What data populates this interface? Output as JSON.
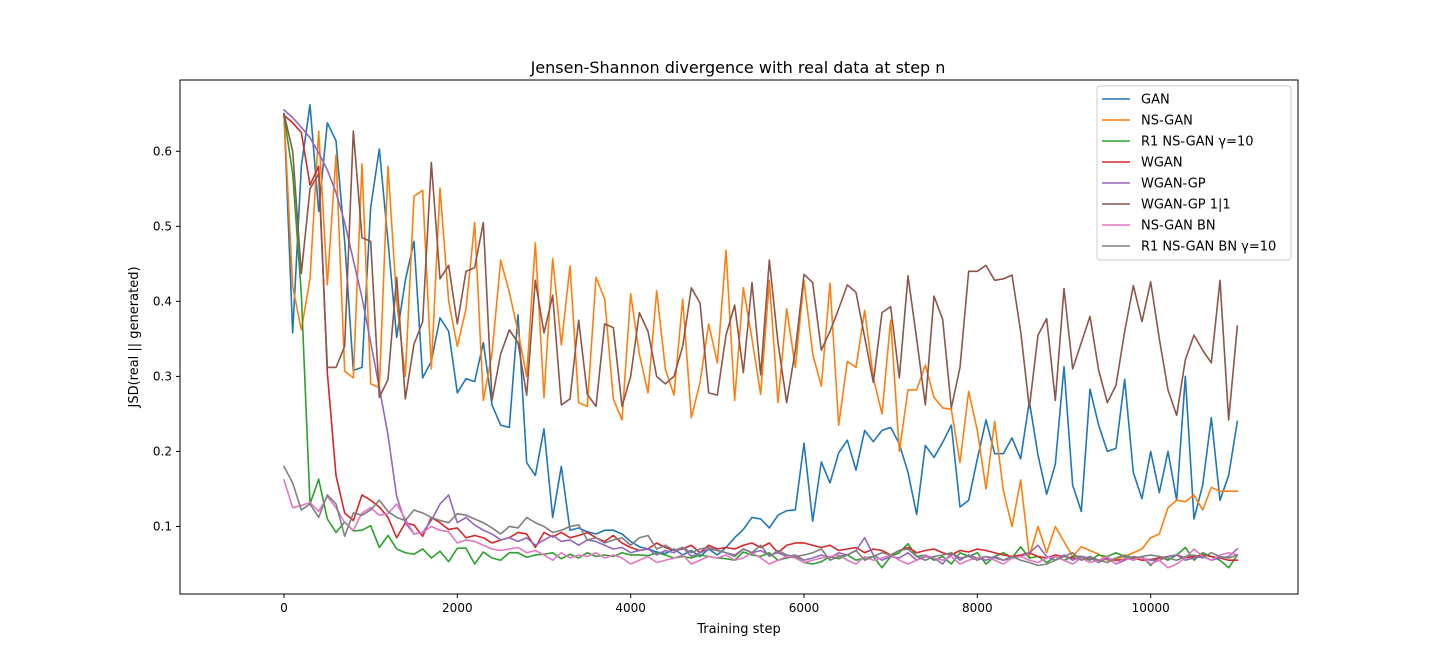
{
  "chart_data": {
    "type": "line",
    "title": "Jensen-Shannon divergence with real data at step n",
    "xlabel": "Training step",
    "ylabel": "JSD(real || generated)",
    "xlim": [
      -1200,
      11700
    ],
    "ylim": [
      0.01,
      0.695
    ],
    "xticks": [
      0,
      2000,
      4000,
      6000,
      8000,
      10000
    ],
    "xtick_labels": [
      "0",
      "2000",
      "4000",
      "6000",
      "8000",
      "10000"
    ],
    "yticks": [
      0.1,
      0.2,
      0.3,
      0.4,
      0.5,
      0.6
    ],
    "ytick_labels": [
      "0.1",
      "0.2",
      "0.3",
      "0.4",
      "0.5",
      "0.6"
    ],
    "grid": false,
    "legend_position": "upper right",
    "x_start": 0,
    "x_step": 100,
    "series": [
      {
        "name": "GAN",
        "color": "#1f77b4",
        "values": [
          0.65,
          0.358,
          0.58,
          0.662,
          0.52,
          0.638,
          0.614,
          0.48,
          0.308,
          0.312,
          0.525,
          0.603,
          0.48,
          0.352,
          0.428,
          0.48,
          0.298,
          0.32,
          0.378,
          0.36,
          0.278,
          0.297,
          0.293,
          0.345,
          0.262,
          0.235,
          0.232,
          0.382,
          0.185,
          0.168,
          0.23,
          0.112,
          0.18,
          0.095,
          0.098,
          0.093,
          0.09,
          0.095,
          0.095,
          0.09,
          0.08,
          0.073,
          0.07,
          0.066,
          0.064,
          0.07,
          0.062,
          0.068,
          0.06,
          0.07,
          0.062,
          0.072,
          0.085,
          0.096,
          0.112,
          0.11,
          0.098,
          0.115,
          0.121,
          0.122,
          0.211,
          0.107,
          0.186,
          0.158,
          0.198,
          0.215,
          0.175,
          0.228,
          0.213,
          0.228,
          0.232,
          0.21,
          0.172,
          0.116,
          0.208,
          0.192,
          0.212,
          0.235,
          0.126,
          0.135,
          0.19,
          0.242,
          0.197,
          0.197,
          0.218,
          0.19,
          0.267,
          0.195,
          0.143,
          0.183,
          0.313,
          0.155,
          0.12,
          0.283,
          0.235,
          0.2,
          0.204,
          0.296,
          0.172,
          0.137,
          0.2,
          0.145,
          0.2,
          0.135,
          0.3,
          0.11,
          0.155,
          0.245,
          0.135,
          0.168,
          0.24
        ]
      },
      {
        "name": "NS-GAN",
        "color": "#ff7f0e",
        "values": [
          0.65,
          0.42,
          0.362,
          0.43,
          0.627,
          0.422,
          0.595,
          0.307,
          0.298,
          0.583,
          0.29,
          0.285,
          0.58,
          0.4,
          0.3,
          0.54,
          0.548,
          0.31,
          0.551,
          0.4,
          0.34,
          0.39,
          0.505,
          0.268,
          0.33,
          0.455,
          0.412,
          0.36,
          0.3,
          0.478,
          0.272,
          0.457,
          0.342,
          0.447,
          0.265,
          0.26,
          0.432,
          0.403,
          0.27,
          0.242,
          0.41,
          0.33,
          0.278,
          0.414,
          0.31,
          0.275,
          0.403,
          0.245,
          0.292,
          0.37,
          0.318,
          0.468,
          0.268,
          0.418,
          0.35,
          0.276,
          0.428,
          0.265,
          0.39,
          0.312,
          0.428,
          0.33,
          0.287,
          0.424,
          0.235,
          0.32,
          0.312,
          0.388,
          0.298,
          0.25,
          0.375,
          0.2,
          0.282,
          0.282,
          0.315,
          0.272,
          0.258,
          0.256,
          0.185,
          0.28,
          0.228,
          0.15,
          0.24,
          0.148,
          0.1,
          0.162,
          0.06,
          0.1,
          0.065,
          0.1,
          0.08,
          0.06,
          0.073,
          0.068,
          0.063,
          0.055,
          0.057,
          0.06,
          0.065,
          0.07,
          0.085,
          0.09,
          0.125,
          0.135,
          0.133,
          0.142,
          0.122,
          0.152,
          0.147,
          0.147,
          0.147
        ]
      },
      {
        "name": "R1 NS-GAN γ=10",
        "color": "#2ca02c",
        "values": [
          0.648,
          0.57,
          0.41,
          0.13,
          0.163,
          0.11,
          0.092,
          0.106,
          0.094,
          0.095,
          0.101,
          0.072,
          0.088,
          0.07,
          0.065,
          0.063,
          0.07,
          0.058,
          0.067,
          0.053,
          0.071,
          0.071,
          0.05,
          0.066,
          0.058,
          0.055,
          0.065,
          0.065,
          0.059,
          0.062,
          0.063,
          0.065,
          0.057,
          0.063,
          0.058,
          0.065,
          0.06,
          0.062,
          0.06,
          0.065,
          0.062,
          0.062,
          0.061,
          0.065,
          0.062,
          0.058,
          0.06,
          0.058,
          0.062,
          0.06,
          0.058,
          0.057,
          0.055,
          0.066,
          0.062,
          0.06,
          0.065,
          0.055,
          0.058,
          0.06,
          0.052,
          0.05,
          0.053,
          0.06,
          0.057,
          0.062,
          0.055,
          0.058,
          0.06,
          0.045,
          0.06,
          0.065,
          0.077,
          0.06,
          0.062,
          0.055,
          0.06,
          0.05,
          0.065,
          0.06,
          0.065,
          0.05,
          0.06,
          0.065,
          0.058,
          0.073,
          0.058,
          0.06,
          0.052,
          0.06,
          0.055,
          0.06,
          0.06,
          0.055,
          0.062,
          0.06,
          0.065,
          0.06,
          0.055,
          0.06,
          0.048,
          0.06,
          0.055,
          0.062,
          0.072,
          0.055,
          0.065,
          0.06,
          0.055,
          0.045,
          0.062
        ]
      },
      {
        "name": "WGAN",
        "color": "#d62728",
        "values": [
          0.648,
          0.638,
          0.625,
          0.555,
          0.58,
          0.305,
          0.168,
          0.118,
          0.108,
          0.142,
          0.135,
          0.126,
          0.112,
          0.085,
          0.105,
          0.102,
          0.087,
          0.112,
          0.105,
          0.096,
          0.098,
          0.085,
          0.088,
          0.085,
          0.078,
          0.082,
          0.085,
          0.092,
          0.09,
          0.072,
          0.092,
          0.086,
          0.092,
          0.085,
          0.088,
          0.092,
          0.085,
          0.08,
          0.088,
          0.078,
          0.072,
          0.068,
          0.07,
          0.078,
          0.072,
          0.068,
          0.07,
          0.075,
          0.065,
          0.075,
          0.07,
          0.072,
          0.07,
          0.075,
          0.078,
          0.072,
          0.078,
          0.065,
          0.075,
          0.078,
          0.078,
          0.075,
          0.072,
          0.075,
          0.068,
          0.07,
          0.072,
          0.065,
          0.07,
          0.068,
          0.062,
          0.068,
          0.072,
          0.065,
          0.068,
          0.07,
          0.065,
          0.062,
          0.068,
          0.066,
          0.07,
          0.068,
          0.065,
          0.062,
          0.06,
          0.062,
          0.065,
          0.06,
          0.058,
          0.062,
          0.06,
          0.058,
          0.056,
          0.058,
          0.055,
          0.057,
          0.055,
          0.056,
          0.058,
          0.055,
          0.056,
          0.058,
          0.06,
          0.062,
          0.058,
          0.06,
          0.062,
          0.06,
          0.058,
          0.055,
          0.055
        ]
      },
      {
        "name": "WGAN-GP",
        "color": "#9467bd",
        "values": [
          0.655,
          0.645,
          0.632,
          0.618,
          0.598,
          0.575,
          0.545,
          0.505,
          0.455,
          0.405,
          0.345,
          0.285,
          0.222,
          0.14,
          0.105,
          0.09,
          0.092,
          0.108,
          0.13,
          0.142,
          0.105,
          0.112,
          0.102,
          0.095,
          0.09,
          0.082,
          0.085,
          0.08,
          0.085,
          0.075,
          0.082,
          0.088,
          0.08,
          0.082,
          0.075,
          0.082,
          0.08,
          0.075,
          0.07,
          0.072,
          0.065,
          0.068,
          0.07,
          0.062,
          0.068,
          0.065,
          0.072,
          0.06,
          0.065,
          0.07,
          0.068,
          0.065,
          0.062,
          0.07,
          0.065,
          0.068,
          0.062,
          0.065,
          0.06,
          0.062,
          0.055,
          0.058,
          0.062,
          0.058,
          0.065,
          0.062,
          0.068,
          0.085,
          0.062,
          0.055,
          0.06,
          0.058,
          0.065,
          0.055,
          0.06,
          0.058,
          0.05,
          0.065,
          0.055,
          0.062,
          0.058,
          0.055,
          0.06,
          0.055,
          0.058,
          0.06,
          0.065,
          0.075,
          0.06,
          0.055,
          0.062,
          0.055,
          0.06,
          0.058,
          0.052,
          0.058,
          0.05,
          0.055,
          0.06,
          0.058,
          0.055,
          0.055,
          0.06,
          0.062,
          0.055,
          0.058,
          0.06,
          0.055,
          0.058,
          0.06,
          0.07
        ]
      },
      {
        "name": "WGAN-GP 1|1",
        "color": "#8c564b",
        "values": [
          0.65,
          0.6,
          0.437,
          0.55,
          0.57,
          0.312,
          0.312,
          0.34,
          0.627,
          0.485,
          0.48,
          0.272,
          0.296,
          0.432,
          0.27,
          0.343,
          0.373,
          0.585,
          0.43,
          0.448,
          0.37,
          0.44,
          0.445,
          0.505,
          0.268,
          0.33,
          0.362,
          0.345,
          0.275,
          0.428,
          0.358,
          0.408,
          0.262,
          0.27,
          0.375,
          0.276,
          0.26,
          0.37,
          0.365,
          0.26,
          0.3,
          0.385,
          0.36,
          0.3,
          0.29,
          0.3,
          0.34,
          0.418,
          0.398,
          0.278,
          0.275,
          0.355,
          0.395,
          0.305,
          0.425,
          0.302,
          0.455,
          0.345,
          0.265,
          0.335,
          0.436,
          0.425,
          0.335,
          0.36,
          0.39,
          0.422,
          0.412,
          0.352,
          0.292,
          0.385,
          0.393,
          0.298,
          0.434,
          0.35,
          0.262,
          0.407,
          0.376,
          0.258,
          0.312,
          0.44,
          0.44,
          0.448,
          0.428,
          0.43,
          0.435,
          0.36,
          0.258,
          0.355,
          0.377,
          0.268,
          0.417,
          0.31,
          0.345,
          0.38,
          0.308,
          0.265,
          0.288,
          0.36,
          0.421,
          0.373,
          0.426,
          0.35,
          0.282,
          0.248,
          0.322,
          0.355,
          0.335,
          0.318,
          0.428,
          0.242,
          0.367
        ]
      },
      {
        "name": "NS-GAN BN",
        "color": "#e377c2",
        "values": [
          0.162,
          0.125,
          0.128,
          0.132,
          0.12,
          0.14,
          0.125,
          0.105,
          0.095,
          0.118,
          0.125,
          0.115,
          0.117,
          0.13,
          0.11,
          0.09,
          0.092,
          0.1,
          0.095,
          0.093,
          0.078,
          0.082,
          0.08,
          0.075,
          0.07,
          0.068,
          0.07,
          0.072,
          0.065,
          0.068,
          0.062,
          0.055,
          0.065,
          0.058,
          0.062,
          0.06,
          0.065,
          0.058,
          0.062,
          0.058,
          0.05,
          0.055,
          0.06,
          0.052,
          0.055,
          0.058,
          0.062,
          0.05,
          0.055,
          0.06,
          0.058,
          0.062,
          0.055,
          0.058,
          0.065,
          0.058,
          0.05,
          0.055,
          0.06,
          0.058,
          0.052,
          0.055,
          0.058,
          0.06,
          0.062,
          0.055,
          0.05,
          0.06,
          0.055,
          0.058,
          0.062,
          0.055,
          0.05,
          0.055,
          0.062,
          0.058,
          0.055,
          0.06,
          0.05,
          0.055,
          0.058,
          0.06,
          0.055,
          0.05,
          0.058,
          0.06,
          0.055,
          0.052,
          0.058,
          0.06,
          0.055,
          0.05,
          0.058,
          0.052,
          0.055,
          0.06,
          0.05,
          0.058,
          0.055,
          0.06,
          0.05,
          0.055,
          0.045,
          0.05,
          0.058,
          0.07,
          0.06,
          0.055,
          0.062,
          0.065,
          0.062
        ]
      },
      {
        "name": "R1 NS-GAN BN γ=10",
        "color": "#7f7f7f",
        "values": [
          0.18,
          0.158,
          0.122,
          0.13,
          0.112,
          0.142,
          0.13,
          0.087,
          0.118,
          0.115,
          0.122,
          0.135,
          0.12,
          0.112,
          0.108,
          0.122,
          0.118,
          0.112,
          0.108,
          0.105,
          0.117,
          0.115,
          0.11,
          0.105,
          0.098,
          0.09,
          0.1,
          0.098,
          0.112,
          0.105,
          0.1,
          0.092,
          0.095,
          0.1,
          0.102,
          0.082,
          0.085,
          0.078,
          0.082,
          0.085,
          0.075,
          0.085,
          0.088,
          0.07,
          0.075,
          0.068,
          0.072,
          0.065,
          0.07,
          0.072,
          0.068,
          0.065,
          0.06,
          0.07,
          0.065,
          0.075,
          0.06,
          0.068,
          0.062,
          0.06,
          0.062,
          0.065,
          0.07,
          0.055,
          0.06,
          0.062,
          0.068,
          0.055,
          0.06,
          0.065,
          0.062,
          0.068,
          0.07,
          0.06,
          0.055,
          0.06,
          0.062,
          0.065,
          0.058,
          0.06,
          0.055,
          0.06,
          0.058,
          0.055,
          0.06,
          0.055,
          0.052,
          0.048,
          0.05,
          0.055,
          0.06,
          0.065,
          0.055,
          0.06,
          0.055,
          0.052,
          0.058,
          0.062,
          0.058,
          0.06,
          0.062,
          0.06,
          0.058,
          0.055,
          0.06,
          0.062,
          0.058,
          0.065,
          0.06,
          0.058,
          0.062
        ]
      }
    ]
  }
}
